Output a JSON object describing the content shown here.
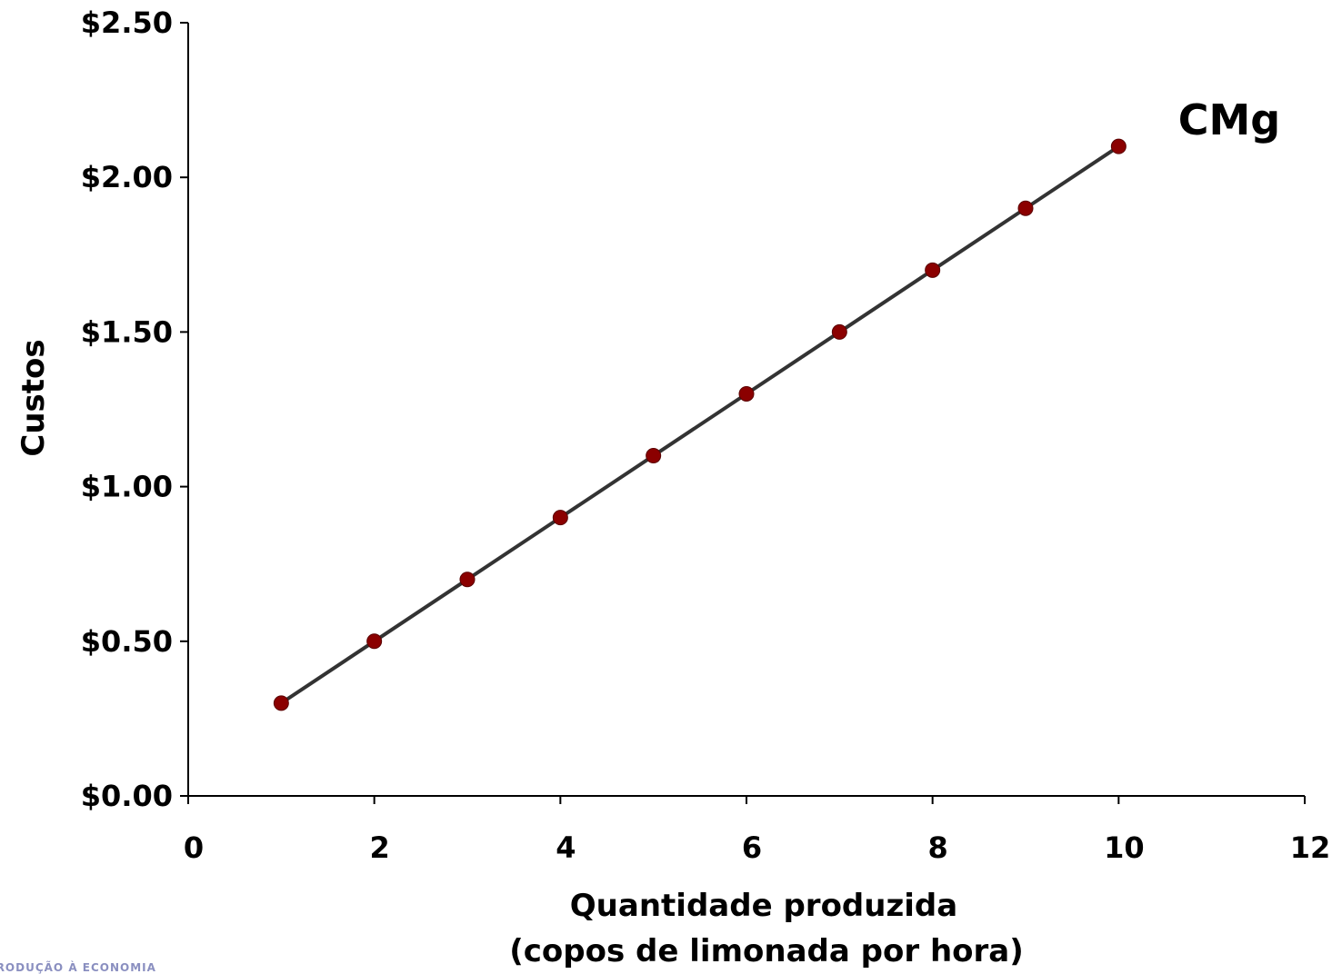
{
  "chart_data": {
    "type": "line",
    "series": [
      {
        "name": "CMg",
        "x": [
          1,
          2,
          3,
          4,
          5,
          6,
          7,
          8,
          9,
          10
        ],
        "values": [
          0.3,
          0.5,
          0.7,
          0.9,
          1.1,
          1.3,
          1.5,
          1.7,
          1.9,
          2.1
        ]
      }
    ],
    "xlabel": [
      "Quantidade produzida",
      "(copos de limonada por hora)"
    ],
    "ylabel": "Custos",
    "xlim": [
      0,
      12
    ],
    "ylim": [
      0,
      2.5
    ],
    "xticks": [
      "0",
      "2",
      "4",
      "6",
      "8",
      "10",
      "12"
    ],
    "yticks": [
      "$0.00",
      "$0.50",
      "$1.00",
      "$1.50",
      "$2.00",
      "$2.50"
    ],
    "grid": false,
    "colors": {
      "line": "#333333",
      "marker": "#8b0000"
    }
  },
  "footer": "INTRODUÇÃO À ECONOMIA"
}
